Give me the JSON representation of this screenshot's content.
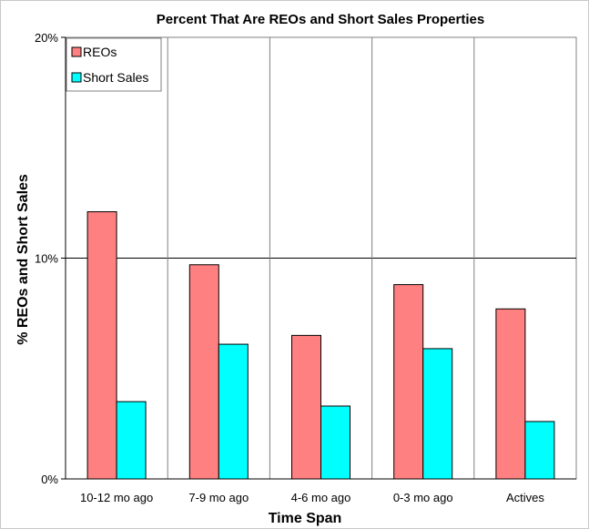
{
  "chart_data": {
    "type": "bar",
    "title": "Percent That Are REOs and Short Sales Properties",
    "xlabel": "Time Span",
    "ylabel": "% REOs and Short Sales",
    "categories": [
      "10-12 mo ago",
      "7-9 mo ago",
      "4-6 mo ago",
      "0-3 mo ago",
      "Actives"
    ],
    "series": [
      {
        "name": "REOs",
        "color": "#FF8080",
        "values": [
          12.1,
          9.7,
          6.5,
          8.8,
          7.7
        ]
      },
      {
        "name": "Short Sales",
        "color": "#00FFFF",
        "values": [
          3.5,
          6.1,
          3.3,
          5.9,
          2.6
        ]
      }
    ],
    "ylim": [
      0,
      20
    ],
    "yticks": [
      0,
      10,
      20
    ],
    "ytick_labels": [
      "0%",
      "10%",
      "20%"
    ],
    "grid": "horizontal at 10% plus vertical category separators",
    "legend_position": "top-left"
  }
}
